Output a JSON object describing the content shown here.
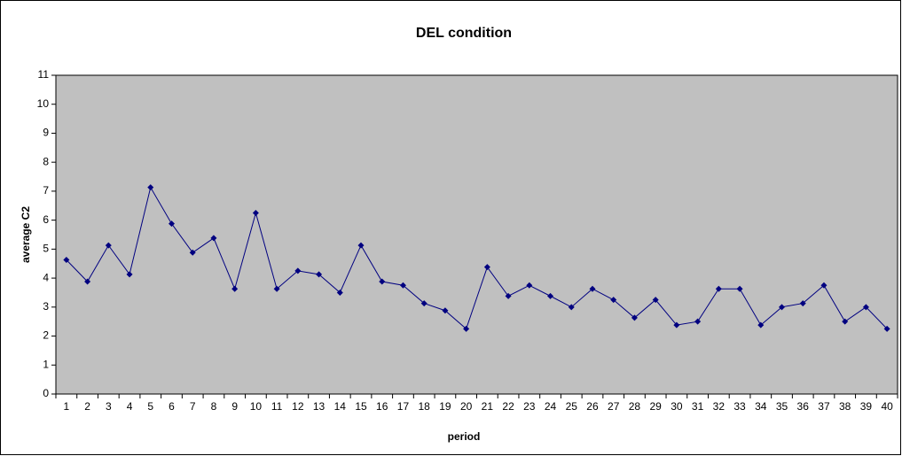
{
  "chart_data": {
    "type": "line",
    "title": "DEL condition",
    "x_label": "period",
    "y_label": "average C2",
    "categories": [
      "1",
      "2",
      "3",
      "4",
      "5",
      "6",
      "7",
      "8",
      "9",
      "10",
      "11",
      "12",
      "13",
      "14",
      "15",
      "16",
      "17",
      "18",
      "19",
      "20",
      "21",
      "22",
      "23",
      "24",
      "25",
      "26",
      "27",
      "28",
      "29",
      "30",
      "31",
      "32",
      "33",
      "34",
      "35",
      "36",
      "37",
      "38",
      "39",
      "40"
    ],
    "series": [
      {
        "color": "#000080",
        "values": [
          4.63,
          3.88,
          5.13,
          4.13,
          7.13,
          5.88,
          4.88,
          5.38,
          3.63,
          6.25,
          3.63,
          4.25,
          4.13,
          3.5,
          5.13,
          3.88,
          3.75,
          3.13,
          2.88,
          2.25,
          4.38,
          3.38,
          3.75,
          3.38,
          3.0,
          3.63,
          3.25,
          2.63,
          3.25,
          2.38,
          2.5,
          3.63,
          3.63,
          2.38,
          3.0,
          3.13,
          3.75,
          2.5,
          3.0,
          2.25
        ]
      }
    ],
    "ylim": [
      0,
      11
    ],
    "yticks": [
      0,
      1,
      2,
      3,
      4,
      5,
      6,
      7,
      8,
      9,
      10,
      11
    ],
    "grid": false,
    "plot_background": "#c0c0c0"
  }
}
